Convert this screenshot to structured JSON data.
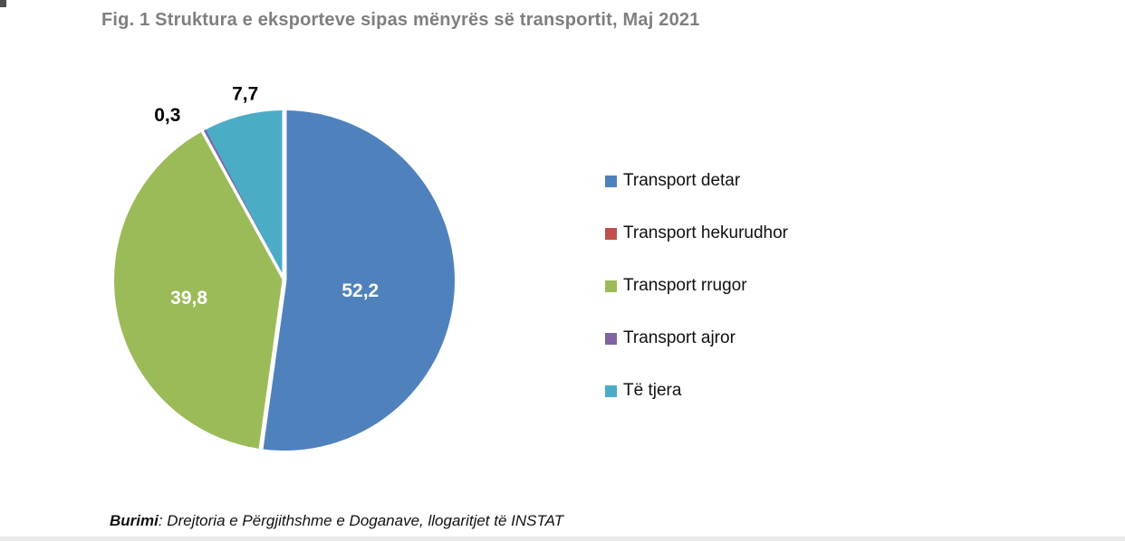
{
  "figure": {
    "title": "Fig. 1 Struktura e eksporteve sipas mënyrës së transportit, Maj 2021",
    "title_color": "#7f7f7f"
  },
  "source": {
    "label": "Burimi",
    "rest": ": Drejtoria e Përgjithshme e Doganave, llogaritjet të INSTAT"
  },
  "chart_data": {
    "type": "pie",
    "title": "Fig. 1 Struktura e eksporteve sipas mënyrës së transportit, Maj 2021",
    "categories": [
      "Transport detar",
      "Transport hekurudhor",
      "Transport rrugor",
      "Transport ajror",
      "Të tjera"
    ],
    "values": [
      52.2,
      0.0,
      39.8,
      0.3,
      7.7
    ],
    "value_labels": [
      "52,2",
      "",
      "39,8",
      "0,3",
      "7,7"
    ],
    "colors": [
      "#4F81BD",
      "#C0504D",
      "#9BBB59",
      "#8064A2",
      "#4BACC6"
    ],
    "unit": "percent",
    "start_angle_deg": 0,
    "direction": "clockwise",
    "legend_position": "right",
    "inside_label_color": "#ffffff",
    "outside_label_color": "#000000"
  }
}
